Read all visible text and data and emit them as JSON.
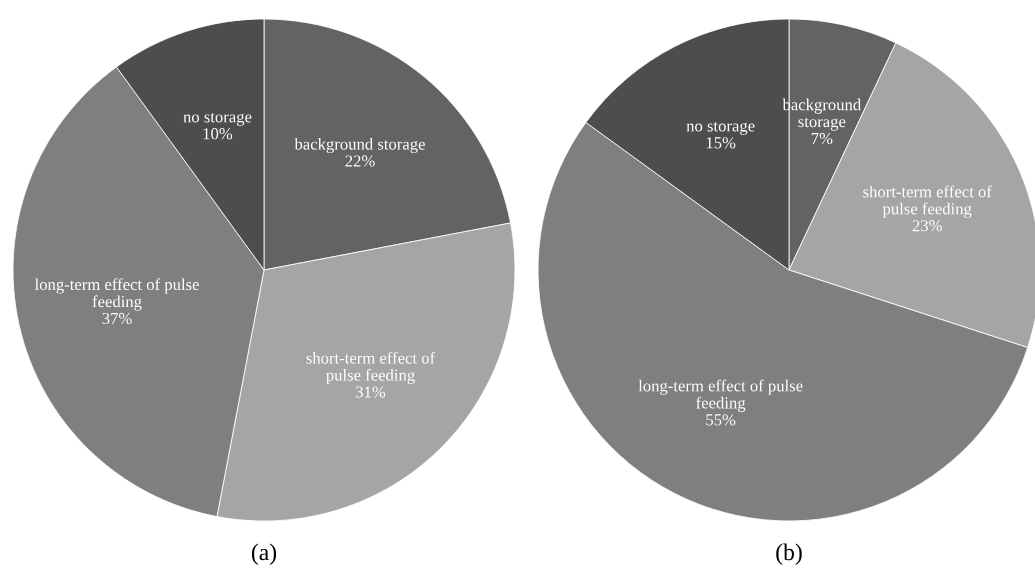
{
  "chart_data": [
    {
      "type": "pie",
      "title": "(a)",
      "categories": [
        "background storage",
        "short-term effect of\npulse feeding",
        "long-term effect of pulse\nfeeding",
        "no storage"
      ],
      "values": [
        22,
        31,
        37,
        10
      ],
      "value_labels": [
        "22%",
        "31%",
        "37%",
        "10%"
      ],
      "colors": [
        "#636363",
        "#a5a5a5",
        "#7f7f7f",
        "#4d4d4d"
      ]
    },
    {
      "type": "pie",
      "title": "(b)",
      "categories": [
        "background\nstorage",
        "short-term effect of\npulse feeding",
        "long-term effect of pulse\nfeeding",
        "no storage"
      ],
      "values": [
        7,
        23,
        55,
        15
      ],
      "value_labels": [
        "7%",
        "23%",
        "55%",
        "15%"
      ],
      "colors": [
        "#636363",
        "#a5a5a5",
        "#7f7f7f",
        "#4d4d4d"
      ]
    }
  ]
}
